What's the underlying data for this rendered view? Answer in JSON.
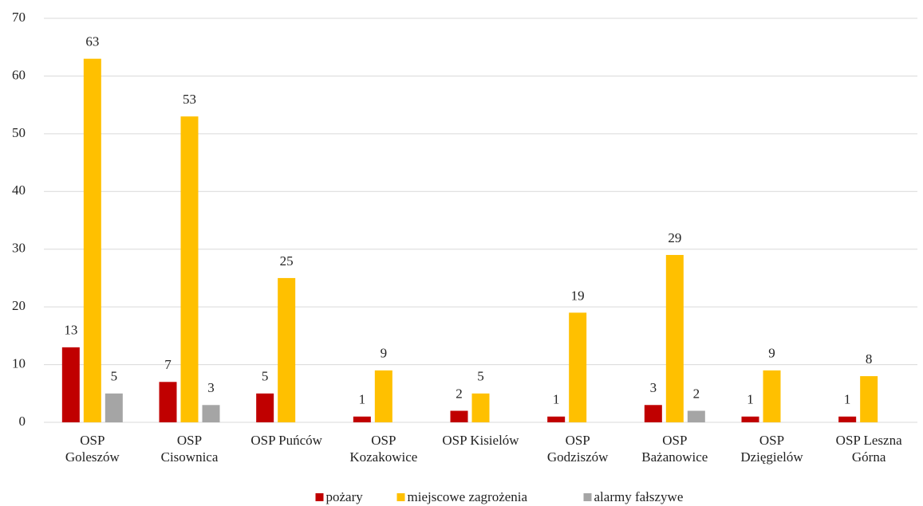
{
  "chart_data": {
    "type": "bar",
    "categories": [
      "OSP\nGoleszów",
      "OSP\nCisownica",
      "OSP Puńców",
      "OSP\nKozakowice",
      "OSP Kisielów",
      "OSP\nGodziszów",
      "OSP\nBażanowice",
      "OSP\nDzięgielów",
      "OSP Leszna\nGórna"
    ],
    "series": [
      {
        "name": "pożary",
        "color": "#c00000",
        "values": [
          13,
          7,
          5,
          1,
          2,
          1,
          3,
          1,
          1
        ]
      },
      {
        "name": "miejscowe zagrożenia",
        "color": "#ffc000",
        "values": [
          63,
          53,
          25,
          9,
          5,
          19,
          29,
          9,
          8
        ]
      },
      {
        "name": "alarmy fałszywe",
        "color": "#a5a5a5",
        "values": [
          5,
          3,
          null,
          null,
          null,
          null,
          2,
          null,
          null
        ]
      }
    ],
    "ylim": [
      0,
      70
    ],
    "yticks": [
      0,
      10,
      20,
      30,
      40,
      50,
      60,
      70
    ],
    "grid": true,
    "legend": "bottom"
  }
}
